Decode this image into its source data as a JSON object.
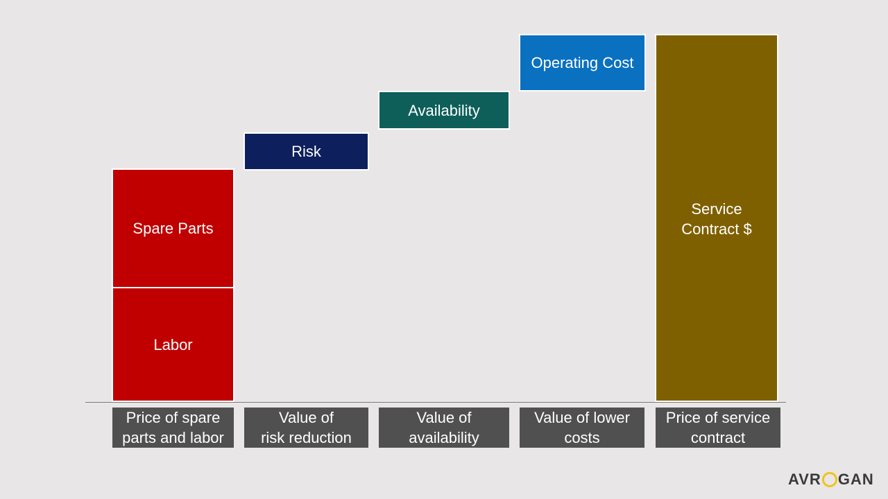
{
  "blocks": [
    {
      "lines": [
        "Labor"
      ]
    },
    {
      "lines": [
        "Spare Parts"
      ]
    },
    {
      "lines": [
        "Risk"
      ]
    },
    {
      "lines": [
        "Availability"
      ]
    },
    {
      "lines": [
        "Operating Cost"
      ]
    },
    {
      "lines": [
        "Service",
        "Contract $"
      ]
    }
  ],
  "captions": [
    {
      "lines": [
        "Price of spare",
        "parts and labor"
      ]
    },
    {
      "lines": [
        "Value of",
        "risk reduction"
      ]
    },
    {
      "lines": [
        "Value of",
        "availability"
      ]
    },
    {
      "lines": [
        "Value of lower",
        "costs"
      ]
    },
    {
      "lines": [
        "Price of service",
        "contract"
      ]
    }
  ],
  "logo": {
    "left": "AVR",
    "right": "GAN"
  }
}
